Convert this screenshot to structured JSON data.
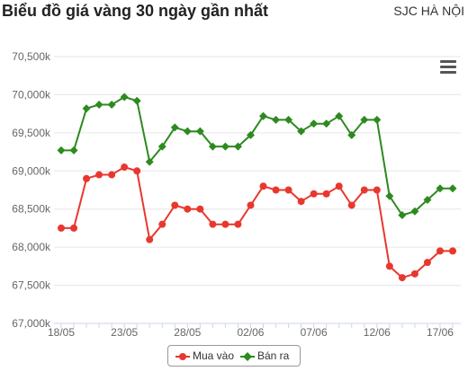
{
  "header": {
    "title": "Biểu đồ giá vàng 30 ngày gần nhất",
    "subtitle": "SJC HÀ NỘI"
  },
  "colors": {
    "buy": "#e8382e",
    "sell": "#2d8a1f",
    "grid": "#e6e6e6",
    "axis": "#ccd6eb"
  },
  "legend": {
    "buy_label": "Mua vào",
    "sell_label": "Bán ra"
  },
  "chart_data": {
    "type": "line",
    "title": "Biểu đồ giá vàng 30 ngày gần nhất",
    "subtitle": "SJC HÀ NỘI",
    "x": [
      "18/05",
      "19/05",
      "20/05",
      "21/05",
      "22/05",
      "23/05",
      "24/05",
      "25/05",
      "26/05",
      "27/05",
      "28/05",
      "29/05",
      "30/05",
      "31/05",
      "01/06",
      "02/06",
      "03/06",
      "04/06",
      "05/06",
      "06/06",
      "07/06",
      "08/06",
      "09/06",
      "10/06",
      "11/06",
      "12/06",
      "13/06",
      "14/06",
      "15/06",
      "16/06",
      "17/06",
      "18/06"
    ],
    "x_tick_labels": [
      "18/05",
      "23/05",
      "28/05",
      "02/06",
      "07/06",
      "12/06",
      "17/06"
    ],
    "y_tick_labels": [
      "67,000k",
      "67,500k",
      "68,000k",
      "68,500k",
      "69,000k",
      "69,500k",
      "70,000k",
      "70,500k"
    ],
    "ylim": [
      67000,
      70500
    ],
    "grid": true,
    "legend_position": "bottom-center",
    "series": [
      {
        "name": "Mua vào",
        "values": [
          68250,
          68250,
          68900,
          68950,
          68950,
          69050,
          69000,
          68100,
          68300,
          68550,
          68500,
          68500,
          68300,
          68300,
          68300,
          68550,
          68800,
          68750,
          68750,
          68600,
          68700,
          68700,
          68800,
          68550,
          68750,
          68750,
          67750,
          67600,
          67650,
          67800,
          67950,
          67950
        ]
      },
      {
        "name": "Bán ra",
        "values": [
          69270,
          69270,
          69820,
          69870,
          69870,
          69970,
          69920,
          69120,
          69320,
          69570,
          69520,
          69520,
          69320,
          69320,
          69320,
          69470,
          69720,
          69670,
          69670,
          69520,
          69620,
          69620,
          69720,
          69470,
          69670,
          69670,
          68670,
          68420,
          68470,
          68620,
          68770,
          68770
        ]
      }
    ]
  }
}
